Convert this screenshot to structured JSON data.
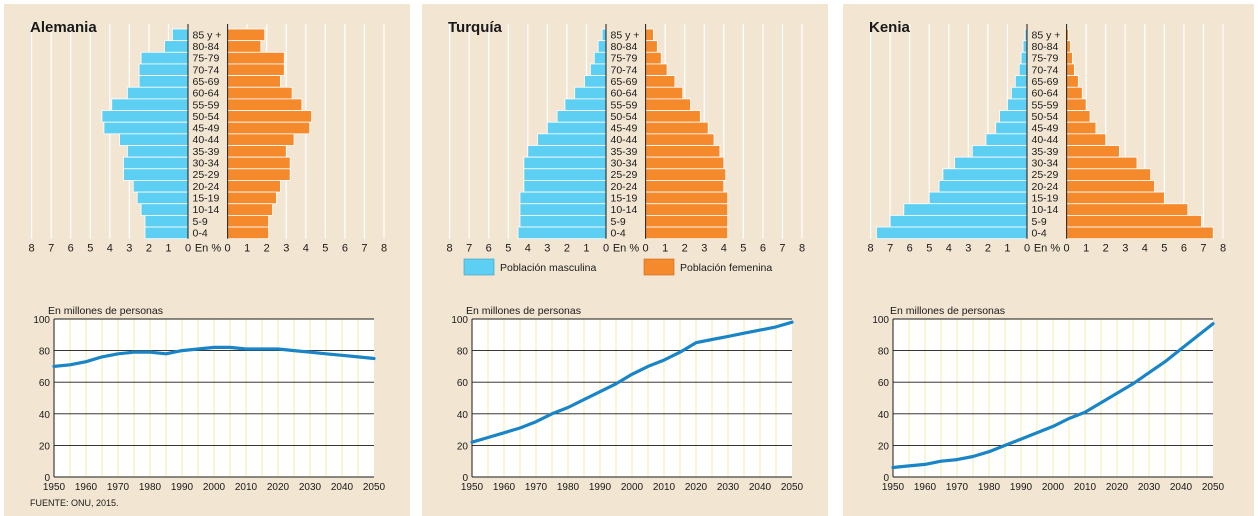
{
  "source": "FUENTE: ONU, 2015.",
  "legend": {
    "male": "Población masculina",
    "female": "Población femenina"
  },
  "colors": {
    "male": "#5ccff2",
    "female": "#f58a2d",
    "line": "#1a85c6",
    "panel_bg": "#f2e5d2"
  },
  "chart_data": [
    {
      "type": "bar",
      "title": "Alemania",
      "orientation": "horizontal-pyramid",
      "categories": [
        "85 y +",
        "80-84",
        "75-79",
        "70-74",
        "65-69",
        "60-64",
        "55-59",
        "50-54",
        "45-49",
        "40-44",
        "35-39",
        "30-34",
        "25-29",
        "20-24",
        "15-19",
        "10-14",
        "5-9",
        "0-4"
      ],
      "x_axis_label": "En %",
      "x_ticks": [
        8,
        7,
        6,
        5,
        4,
        3,
        2,
        1,
        0
      ],
      "xlim": [
        0,
        8
      ],
      "series": [
        {
          "name": "Población masculina",
          "values": [
            0.8,
            1.2,
            2.4,
            2.5,
            2.5,
            3.1,
            3.9,
            4.4,
            4.3,
            3.5,
            3.1,
            3.3,
            3.3,
            2.8,
            2.6,
            2.4,
            2.2,
            2.2
          ]
        },
        {
          "name": "Población femenina",
          "values": [
            1.9,
            1.7,
            2.9,
            2.9,
            2.7,
            3.3,
            3.8,
            4.3,
            4.2,
            3.4,
            3.0,
            3.2,
            3.2,
            2.7,
            2.5,
            2.3,
            2.1,
            2.1
          ]
        }
      ]
    },
    {
      "type": "bar",
      "title": "Turquía",
      "orientation": "horizontal-pyramid",
      "categories": [
        "85 y +",
        "80-84",
        "75-79",
        "70-74",
        "65-69",
        "60-64",
        "55-59",
        "50-54",
        "45-49",
        "40-44",
        "35-39",
        "30-34",
        "25-29",
        "20-24",
        "15-19",
        "10-14",
        "5-9",
        "0-4"
      ],
      "x_axis_label": "En %",
      "x_ticks": [
        8,
        7,
        6,
        5,
        4,
        3,
        2,
        1,
        0
      ],
      "xlim": [
        0,
        8
      ],
      "series": [
        {
          "name": "Población masculina",
          "values": [
            0.2,
            0.4,
            0.6,
            0.8,
            1.1,
            1.6,
            2.1,
            2.5,
            3.0,
            3.5,
            4.0,
            4.2,
            4.2,
            4.2,
            4.4,
            4.4,
            4.4,
            4.5
          ]
        },
        {
          "name": "Población femenina",
          "values": [
            0.4,
            0.6,
            0.8,
            1.1,
            1.5,
            1.9,
            2.3,
            2.8,
            3.2,
            3.5,
            3.8,
            4.0,
            4.1,
            4.0,
            4.2,
            4.2,
            4.2,
            4.2
          ]
        }
      ]
    },
    {
      "type": "bar",
      "title": "Kenia",
      "orientation": "horizontal-pyramid",
      "categories": [
        "85 y +",
        "80-84",
        "75-79",
        "70-74",
        "65-69",
        "60-64",
        "55-59",
        "50-54",
        "45-49",
        "40-44",
        "35-39",
        "30-34",
        "25-29",
        "20-24",
        "15-19",
        "10-14",
        "5-9",
        "0-4"
      ],
      "x_axis_label": "En %",
      "x_ticks": [
        8,
        7,
        6,
        5,
        4,
        3,
        2,
        1,
        0
      ],
      "xlim": [
        0,
        8
      ],
      "series": [
        {
          "name": "Población masculina",
          "values": [
            0.1,
            0.2,
            0.3,
            0.4,
            0.6,
            0.8,
            1.0,
            1.4,
            1.6,
            2.1,
            2.8,
            3.7,
            4.3,
            4.5,
            5.0,
            6.3,
            7.0,
            7.7
          ]
        },
        {
          "name": "Población femenina",
          "values": [
            0.1,
            0.2,
            0.3,
            0.4,
            0.6,
            0.8,
            1.0,
            1.2,
            1.5,
            2.0,
            2.7,
            3.6,
            4.3,
            4.5,
            5.0,
            6.2,
            6.9,
            7.5
          ]
        }
      ]
    },
    {
      "type": "line",
      "title": "Alemania",
      "ylabel": "En millones de personas",
      "x": [
        1950,
        1955,
        1960,
        1965,
        1970,
        1975,
        1980,
        1985,
        1990,
        1995,
        2000,
        2005,
        2010,
        2015,
        2020,
        2025,
        2030,
        2035,
        2040,
        2045,
        2050
      ],
      "values": [
        70,
        71,
        73,
        76,
        78,
        79,
        79,
        78,
        80,
        81,
        82,
        82,
        81,
        81,
        81,
        80,
        79,
        78,
        77,
        76,
        75
      ],
      "xticks": [
        1950,
        1960,
        1970,
        1980,
        1990,
        2000,
        2010,
        2020,
        2030,
        2040,
        2050
      ],
      "yticks": [
        0,
        20,
        40,
        60,
        80,
        100
      ],
      "xlim": [
        1950,
        2050
      ],
      "ylim": [
        0,
        100
      ],
      "grid": true
    },
    {
      "type": "line",
      "title": "Turquía",
      "ylabel": "En millones de personas",
      "x": [
        1950,
        1955,
        1960,
        1965,
        1970,
        1975,
        1980,
        1985,
        1990,
        1995,
        2000,
        2005,
        2010,
        2015,
        2020,
        2025,
        2030,
        2035,
        2040,
        2045,
        2050
      ],
      "values": [
        22,
        25,
        28,
        31,
        35,
        40,
        44,
        49,
        54,
        59,
        65,
        70,
        74,
        79,
        85,
        87,
        89,
        91,
        93,
        95,
        98
      ],
      "xticks": [
        1950,
        1960,
        1970,
        1980,
        1990,
        2000,
        2010,
        2020,
        2030,
        2040,
        2050
      ],
      "yticks": [
        0,
        20,
        40,
        60,
        80,
        100
      ],
      "xlim": [
        1950,
        2050
      ],
      "ylim": [
        0,
        100
      ],
      "grid": true
    },
    {
      "type": "line",
      "title": "Kenia",
      "ylabel": "En millones de personas",
      "x": [
        1950,
        1955,
        1960,
        1965,
        1970,
        1975,
        1980,
        1985,
        1990,
        1995,
        2000,
        2005,
        2010,
        2015,
        2020,
        2025,
        2030,
        2035,
        2040,
        2045,
        2050
      ],
      "values": [
        6,
        7,
        8,
        10,
        11,
        13,
        16,
        20,
        24,
        28,
        32,
        37,
        41,
        47,
        53,
        59,
        66,
        73,
        81,
        89,
        97
      ],
      "xticks": [
        1950,
        1960,
        1970,
        1980,
        1990,
        2000,
        2010,
        2020,
        2030,
        2040,
        2050
      ],
      "yticks": [
        0,
        20,
        40,
        60,
        80,
        100
      ],
      "xlim": [
        1950,
        2050
      ],
      "ylim": [
        0,
        100
      ],
      "grid": true
    }
  ]
}
